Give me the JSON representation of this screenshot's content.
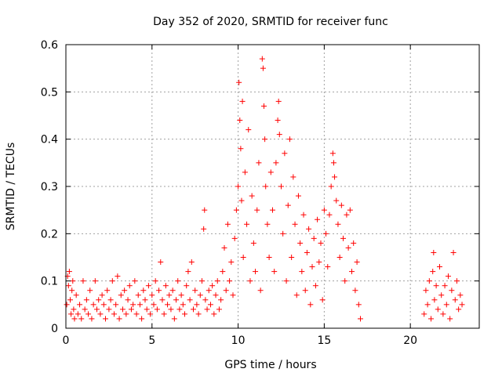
{
  "chart_data": {
    "type": "scatter",
    "title": "Day 352 of 2020, SRMTID for receiver func",
    "xlabel": "GPS time / hours",
    "ylabel": "SRMTID / TECUs",
    "xlim": [
      0,
      24
    ],
    "ylim": [
      0,
      0.6
    ],
    "x_ticks": [
      0,
      5,
      10,
      15,
      20
    ],
    "x_tick_labels": [
      "0",
      "5",
      "10",
      "15",
      "20"
    ],
    "y_ticks": [
      0,
      0.1,
      0.2,
      0.3,
      0.4,
      0.5,
      0.6
    ],
    "y_tick_labels": [
      "0",
      "0.1",
      "0.2",
      "0.3",
      "0.4",
      "0.5",
      "0.6"
    ],
    "grid": true,
    "marker": "+",
    "color": "#ff0000",
    "series": [
      {
        "name": "SRMTID",
        "points": [
          [
            0.05,
            0.05
          ],
          [
            0.1,
            0.11
          ],
          [
            0.15,
            0.09
          ],
          [
            0.2,
            0.12
          ],
          [
            0.25,
            0.06
          ],
          [
            0.3,
            0.03
          ],
          [
            0.35,
            0.08
          ],
          [
            0.4,
            0.1
          ],
          [
            0.45,
            0.04
          ],
          [
            0.5,
            0.02
          ],
          [
            0.6,
            0.07
          ],
          [
            0.7,
            0.03
          ],
          [
            0.8,
            0.05
          ],
          [
            0.9,
            0.02
          ],
          [
            1.0,
            0.1
          ],
          [
            1.1,
            0.04
          ],
          [
            1.2,
            0.06
          ],
          [
            1.3,
            0.03
          ],
          [
            1.4,
            0.08
          ],
          [
            1.5,
            0.02
          ],
          [
            1.6,
            0.05
          ],
          [
            1.7,
            0.1
          ],
          [
            1.8,
            0.04
          ],
          [
            1.9,
            0.06
          ],
          [
            2.0,
            0.03
          ],
          [
            2.1,
            0.07
          ],
          [
            2.2,
            0.05
          ],
          [
            2.3,
            0.02
          ],
          [
            2.4,
            0.08
          ],
          [
            2.5,
            0.04
          ],
          [
            2.6,
            0.06
          ],
          [
            2.7,
            0.1
          ],
          [
            2.8,
            0.03
          ],
          [
            2.9,
            0.05
          ],
          [
            3.0,
            0.11
          ],
          [
            3.1,
            0.02
          ],
          [
            3.2,
            0.07
          ],
          [
            3.3,
            0.04
          ],
          [
            3.4,
            0.08
          ],
          [
            3.5,
            0.03
          ],
          [
            3.6,
            0.06
          ],
          [
            3.7,
            0.09
          ],
          [
            3.8,
            0.04
          ],
          [
            3.9,
            0.05
          ],
          [
            4.0,
            0.1
          ],
          [
            4.1,
            0.03
          ],
          [
            4.2,
            0.07
          ],
          [
            4.3,
            0.05
          ],
          [
            4.4,
            0.02
          ],
          [
            4.5,
            0.08
          ],
          [
            4.6,
            0.06
          ],
          [
            4.7,
            0.04
          ],
          [
            4.8,
            0.09
          ],
          [
            4.9,
            0.03
          ],
          [
            5.0,
            0.07
          ],
          [
            5.1,
            0.05
          ],
          [
            5.2,
            0.1
          ],
          [
            5.3,
            0.04
          ],
          [
            5.4,
            0.08
          ],
          [
            5.5,
            0.14
          ],
          [
            5.6,
            0.06
          ],
          [
            5.7,
            0.03
          ],
          [
            5.8,
            0.09
          ],
          [
            5.9,
            0.05
          ],
          [
            6.0,
            0.07
          ],
          [
            6.1,
            0.04
          ],
          [
            6.2,
            0.08
          ],
          [
            6.3,
            0.02
          ],
          [
            6.4,
            0.06
          ],
          [
            6.5,
            0.1
          ],
          [
            6.6,
            0.04
          ],
          [
            6.7,
            0.07
          ],
          [
            6.8,
            0.05
          ],
          [
            6.9,
            0.03
          ],
          [
            7.0,
            0.09
          ],
          [
            7.1,
            0.12
          ],
          [
            7.2,
            0.06
          ],
          [
            7.3,
            0.14
          ],
          [
            7.4,
            0.04
          ],
          [
            7.5,
            0.08
          ],
          [
            7.6,
            0.05
          ],
          [
            7.7,
            0.03
          ],
          [
            7.8,
            0.07
          ],
          [
            7.9,
            0.1
          ],
          [
            8.0,
            0.21
          ],
          [
            8.05,
            0.25
          ],
          [
            8.1,
            0.06
          ],
          [
            8.2,
            0.04
          ],
          [
            8.3,
            0.08
          ],
          [
            8.4,
            0.05
          ],
          [
            8.5,
            0.09
          ],
          [
            8.6,
            0.03
          ],
          [
            8.7,
            0.07
          ],
          [
            8.8,
            0.1
          ],
          [
            8.9,
            0.04
          ],
          [
            9.0,
            0.06
          ],
          [
            9.1,
            0.12
          ],
          [
            9.2,
            0.17
          ],
          [
            9.3,
            0.08
          ],
          [
            9.4,
            0.22
          ],
          [
            9.5,
            0.1
          ],
          [
            9.6,
            0.14
          ],
          [
            9.7,
            0.07
          ],
          [
            9.8,
            0.19
          ],
          [
            9.9,
            0.25
          ],
          [
            10.0,
            0.3
          ],
          [
            10.05,
            0.52
          ],
          [
            10.1,
            0.44
          ],
          [
            10.15,
            0.38
          ],
          [
            10.2,
            0.27
          ],
          [
            10.25,
            0.48
          ],
          [
            10.3,
            0.15
          ],
          [
            10.4,
            0.33
          ],
          [
            10.5,
            0.22
          ],
          [
            10.6,
            0.42
          ],
          [
            10.7,
            0.1
          ],
          [
            10.8,
            0.28
          ],
          [
            10.9,
            0.18
          ],
          [
            11.0,
            0.12
          ],
          [
            11.1,
            0.25
          ],
          [
            11.2,
            0.35
          ],
          [
            11.3,
            0.08
          ],
          [
            11.4,
            0.57
          ],
          [
            11.45,
            0.55
          ],
          [
            11.5,
            0.47
          ],
          [
            11.55,
            0.4
          ],
          [
            11.6,
            0.3
          ],
          [
            11.7,
            0.22
          ],
          [
            11.8,
            0.15
          ],
          [
            11.9,
            0.33
          ],
          [
            12.0,
            0.25
          ],
          [
            12.1,
            0.12
          ],
          [
            12.2,
            0.35
          ],
          [
            12.3,
            0.44
          ],
          [
            12.35,
            0.48
          ],
          [
            12.4,
            0.41
          ],
          [
            12.5,
            0.3
          ],
          [
            12.6,
            0.2
          ],
          [
            12.7,
            0.37
          ],
          [
            12.8,
            0.1
          ],
          [
            12.9,
            0.26
          ],
          [
            13.0,
            0.4
          ],
          [
            13.1,
            0.15
          ],
          [
            13.2,
            0.32
          ],
          [
            13.3,
            0.22
          ],
          [
            13.4,
            0.07
          ],
          [
            13.5,
            0.28
          ],
          [
            13.6,
            0.18
          ],
          [
            13.7,
            0.12
          ],
          [
            13.8,
            0.24
          ],
          [
            13.9,
            0.08
          ],
          [
            14.0,
            0.16
          ],
          [
            14.1,
            0.21
          ],
          [
            14.2,
            0.05
          ],
          [
            14.3,
            0.13
          ],
          [
            14.4,
            0.19
          ],
          [
            14.5,
            0.09
          ],
          [
            14.6,
            0.23
          ],
          [
            14.7,
            0.14
          ],
          [
            14.8,
            0.18
          ],
          [
            14.9,
            0.06
          ],
          [
            15.0,
            0.25
          ],
          [
            15.1,
            0.2
          ],
          [
            15.2,
            0.13
          ],
          [
            15.3,
            0.24
          ],
          [
            15.4,
            0.3
          ],
          [
            15.5,
            0.37
          ],
          [
            15.55,
            0.35
          ],
          [
            15.6,
            0.32
          ],
          [
            15.7,
            0.27
          ],
          [
            15.8,
            0.22
          ],
          [
            15.9,
            0.15
          ],
          [
            16.0,
            0.26
          ],
          [
            16.1,
            0.19
          ],
          [
            16.2,
            0.1
          ],
          [
            16.3,
            0.24
          ],
          [
            16.4,
            0.17
          ],
          [
            16.5,
            0.25
          ],
          [
            16.6,
            0.12
          ],
          [
            16.7,
            0.18
          ],
          [
            16.8,
            0.08
          ],
          [
            16.9,
            0.14
          ],
          [
            17.0,
            0.05
          ],
          [
            17.1,
            0.02
          ],
          [
            20.8,
            0.03
          ],
          [
            20.9,
            0.08
          ],
          [
            21.0,
            0.05
          ],
          [
            21.1,
            0.1
          ],
          [
            21.2,
            0.02
          ],
          [
            21.3,
            0.12
          ],
          [
            21.35,
            0.16
          ],
          [
            21.4,
            0.06
          ],
          [
            21.5,
            0.09
          ],
          [
            21.6,
            0.04
          ],
          [
            21.7,
            0.13
          ],
          [
            21.8,
            0.07
          ],
          [
            21.9,
            0.03
          ],
          [
            22.0,
            0.09
          ],
          [
            22.1,
            0.05
          ],
          [
            22.2,
            0.11
          ],
          [
            22.3,
            0.02
          ],
          [
            22.4,
            0.08
          ],
          [
            22.5,
            0.16
          ],
          [
            22.6,
            0.06
          ],
          [
            22.7,
            0.1
          ],
          [
            22.8,
            0.04
          ],
          [
            22.9,
            0.07
          ],
          [
            23.0,
            0.05
          ]
        ]
      }
    ]
  }
}
